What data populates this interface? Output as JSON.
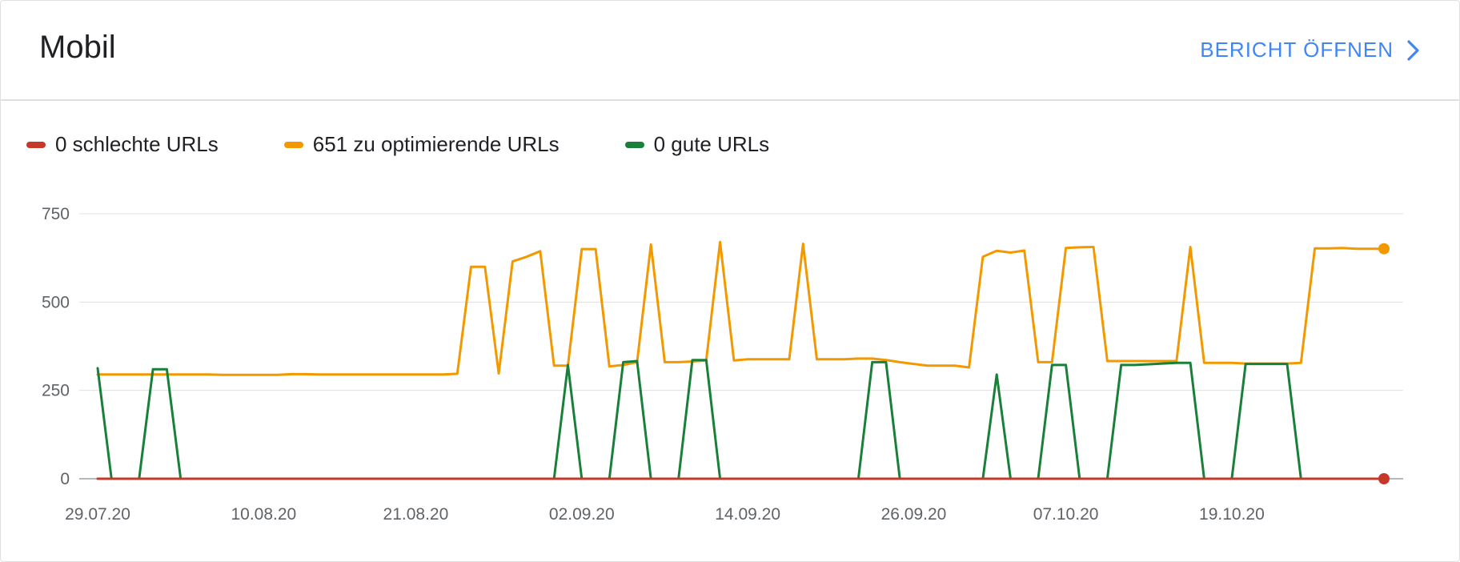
{
  "header": {
    "title": "Mobil",
    "open_report_label": "BERICHT ÖFFNEN"
  },
  "legend": [
    {
      "label": "0 schlechte URLs",
      "color": "#c5382a"
    },
    {
      "label": "651 zu optimierende URLs",
      "color": "#f29900"
    },
    {
      "label": "0 gute URLs",
      "color": "#188038"
    }
  ],
  "chart_data": {
    "type": "line",
    "ylim": [
      0,
      750
    ],
    "yticks": [
      0,
      250,
      500,
      750
    ],
    "x_labels": [
      "29.07.20",
      "10.08.20",
      "21.08.20",
      "02.09.20",
      "14.09.20",
      "26.09.20",
      "07.10.20",
      "19.10.20"
    ],
    "x": [
      "29.07.20",
      "30.07.20",
      "31.07.20",
      "01.08.20",
      "02.08.20",
      "03.08.20",
      "04.08.20",
      "05.08.20",
      "06.08.20",
      "07.08.20",
      "08.08.20",
      "09.08.20",
      "10.08.20",
      "11.08.20",
      "12.08.20",
      "13.08.20",
      "14.08.20",
      "15.08.20",
      "16.08.20",
      "17.08.20",
      "18.08.20",
      "19.08.20",
      "20.08.20",
      "21.08.20",
      "22.08.20",
      "23.08.20",
      "24.08.20",
      "25.08.20",
      "26.08.20",
      "27.08.20",
      "28.08.20",
      "29.08.20",
      "30.08.20",
      "31.08.20",
      "01.09.20",
      "02.09.20",
      "03.09.20",
      "04.09.20",
      "05.09.20",
      "06.09.20",
      "07.09.20",
      "08.09.20",
      "09.09.20",
      "10.09.20",
      "11.09.20",
      "12.09.20",
      "13.09.20",
      "14.09.20",
      "15.09.20",
      "16.09.20",
      "17.09.20",
      "18.09.20",
      "19.09.20",
      "20.09.20",
      "21.09.20",
      "22.09.20",
      "23.09.20",
      "24.09.20",
      "25.09.20",
      "26.09.20",
      "27.09.20",
      "28.09.20",
      "29.09.20",
      "30.09.20",
      "01.10.20",
      "02.10.20",
      "03.10.20",
      "04.10.20",
      "05.10.20",
      "06.10.20",
      "07.10.20",
      "08.10.20",
      "09.10.20",
      "10.10.20",
      "11.10.20",
      "12.10.20",
      "13.10.20",
      "14.10.20",
      "15.10.20",
      "16.10.20",
      "17.10.20",
      "18.10.20",
      "19.10.20",
      "20.10.20",
      "21.10.20",
      "22.10.20",
      "23.10.20",
      "24.10.20",
      "25.10.20",
      "26.10.20",
      "27.10.20",
      "28.10.20",
      "29.10.20",
      "30.10.20"
    ],
    "series": [
      {
        "name": "0 schlechte URLs",
        "color": "#c5382a",
        "values": [
          0,
          0,
          0,
          0,
          0,
          0,
          0,
          0,
          0,
          0,
          0,
          0,
          0,
          0,
          0,
          0,
          0,
          0,
          0,
          0,
          0,
          0,
          0,
          0,
          0,
          0,
          0,
          0,
          0,
          0,
          0,
          0,
          0,
          0,
          0,
          0,
          0,
          0,
          0,
          0,
          0,
          0,
          0,
          0,
          0,
          0,
          0,
          0,
          0,
          0,
          0,
          0,
          0,
          0,
          0,
          0,
          0,
          0,
          0,
          0,
          0,
          0,
          0,
          0,
          0,
          0,
          0,
          0,
          0,
          0,
          0,
          0,
          0,
          0,
          0,
          0,
          0,
          0,
          0,
          0,
          0,
          0,
          0,
          0,
          0,
          0,
          0,
          0,
          0,
          0,
          0,
          0,
          0,
          0
        ]
      },
      {
        "name": "651 zu optimierende URLs",
        "color": "#f29900",
        "values": [
          295,
          295,
          295,
          295,
          295,
          295,
          295,
          295,
          295,
          294,
          294,
          294,
          294,
          294,
          296,
          296,
          295,
          295,
          295,
          295,
          295,
          295,
          295,
          295,
          295,
          295,
          297,
          600,
          600,
          298,
          615,
          628,
          644,
          320,
          320,
          650,
          650,
          318,
          322,
          330,
          663,
          330,
          330,
          332,
          335,
          670,
          335,
          338,
          338,
          338,
          338,
          665,
          338,
          338,
          338,
          340,
          340,
          336,
          330,
          325,
          320,
          320,
          320,
          315,
          628,
          645,
          640,
          646,
          330,
          330,
          653,
          655,
          656,
          333,
          333,
          333,
          333,
          333,
          333,
          656,
          328,
          328,
          328,
          326,
          326,
          326,
          326,
          328,
          652,
          652,
          653,
          651,
          651,
          651
        ]
      },
      {
        "name": "0 gute URLs",
        "color": "#188038",
        "values": [
          313,
          0,
          0,
          0,
          310,
          310,
          0,
          0,
          0,
          0,
          0,
          0,
          0,
          0,
          0,
          0,
          0,
          0,
          0,
          0,
          0,
          0,
          0,
          0,
          0,
          0,
          0,
          0,
          0,
          0,
          0,
          0,
          0,
          0,
          322,
          0,
          0,
          0,
          330,
          333,
          0,
          0,
          0,
          336,
          336,
          0,
          0,
          0,
          0,
          0,
          0,
          0,
          0,
          0,
          0,
          0,
          330,
          330,
          0,
          0,
          0,
          0,
          0,
          0,
          0,
          295,
          0,
          0,
          0,
          322,
          322,
          0,
          0,
          0,
          322,
          322,
          324,
          326,
          328,
          328,
          0,
          0,
          0,
          325,
          325,
          325,
          325,
          0,
          0,
          0,
          0,
          0,
          0,
          0
        ]
      }
    ]
  }
}
